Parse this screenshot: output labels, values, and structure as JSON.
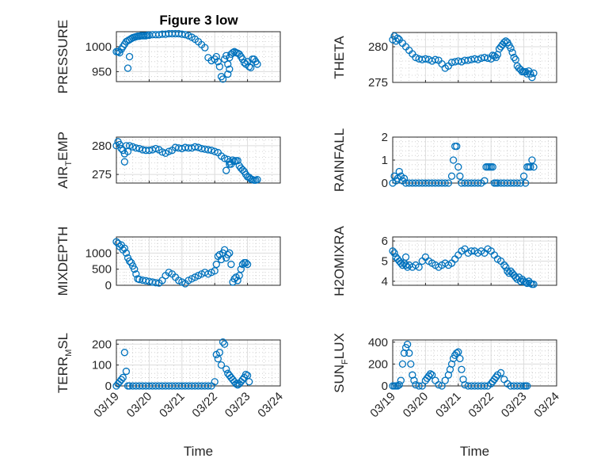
{
  "figure": {
    "title": "Figure 3 low",
    "marker_color": "#0072BD",
    "grid": true,
    "minor_grid": true
  },
  "time_ticks": [
    "03/19",
    "03/20",
    "03/21",
    "03/22",
    "03/23",
    "03/24"
  ],
  "chart_data": [
    {
      "id": "pressure",
      "type": "scatter",
      "title": "Figure 3 low",
      "ylabel": "PRESSURE",
      "ylabel_sub": "",
      "ylabel_tail": "",
      "ylim": [
        930,
        1030
      ],
      "yticks": [
        950,
        1000
      ],
      "xlim": [
        0,
        5
      ],
      "show_xticks": false,
      "x": [
        0,
        0.05,
        0.1,
        0.15,
        0.2,
        0.25,
        0.3,
        0.35,
        0.4,
        0.45,
        0.5,
        0.55,
        0.6,
        0.65,
        0.7,
        0.75,
        0.8,
        0.85,
        0.9,
        0.95,
        1,
        1.1,
        1.2,
        1.3,
        1.4,
        1.5,
        1.6,
        1.7,
        1.8,
        1.9,
        2,
        2.1,
        2.2,
        2.3,
        2.4,
        2.5,
        2.6,
        2.7,
        2.8,
        2.9,
        3,
        3.05,
        3.1,
        3.15,
        3.2,
        3.25,
        3.3,
        3.35,
        3.4,
        3.45,
        3.5,
        3.55,
        3.6,
        3.65,
        3.7,
        3.75,
        3.8,
        3.85,
        3.9,
        3.95,
        4.0,
        4.05,
        4.1,
        4.15,
        4.2,
        4.25,
        4.3,
        0.35,
        0.4,
        3.4,
        3.45
      ],
      "y": [
        990,
        990,
        988,
        995,
        1000,
        1005,
        1010,
        1012,
        1014,
        1016,
        1018,
        1019,
        1020,
        1021,
        1021,
        1022,
        1022,
        1022,
        1022,
        1023,
        1023,
        1024,
        1024,
        1024,
        1025,
        1025,
        1026,
        1026,
        1026,
        1026,
        1025,
        1024,
        1022,
        1019,
        1015,
        1010,
        1004,
        998,
        978,
        972,
        975,
        980,
        970,
        960,
        940,
        935,
        975,
        982,
        965,
        978,
        985,
        988,
        990,
        988,
        987,
        985,
        980,
        975,
        968,
        965,
        970,
        960,
        958,
        975,
        975,
        970,
        965,
        957,
        980,
        945,
        955
      ]
    },
    {
      "id": "theta",
      "type": "scatter",
      "ylabel": "THETA",
      "ylabel_sub": "",
      "ylabel_tail": "",
      "ylim": [
        275,
        282
      ],
      "yticks": [
        275,
        280
      ],
      "xlim": [
        0,
        5
      ],
      "show_xticks": false,
      "x": [
        0,
        0.05,
        0.1,
        0.15,
        0.2,
        0.3,
        0.4,
        0.5,
        0.6,
        0.7,
        0.8,
        0.9,
        1,
        1.1,
        1.2,
        1.3,
        1.4,
        1.5,
        1.6,
        1.7,
        1.8,
        1.9,
        2,
        2.1,
        2.2,
        2.3,
        2.4,
        2.5,
        2.6,
        2.7,
        2.8,
        2.9,
        3,
        3.05,
        3.1,
        3.15,
        3.2,
        3.25,
        3.3,
        3.35,
        3.4,
        3.45,
        3.5,
        3.55,
        3.6,
        3.65,
        3.7,
        3.75,
        3.8,
        3.85,
        3.9,
        3.95,
        4.0,
        4.05,
        4.1,
        4.15,
        4.2,
        4.25,
        4.3
      ],
      "y": [
        281,
        281.5,
        280.8,
        281.2,
        281,
        280.5,
        280,
        279.5,
        279,
        278.5,
        278.3,
        278.2,
        278.3,
        278.2,
        278,
        278.2,
        278.1,
        277.6,
        277,
        277.3,
        277.8,
        277.9,
        278,
        277.9,
        278.1,
        278.1,
        278.2,
        278.3,
        278.2,
        278.4,
        278.5,
        278.4,
        278.3,
        278.8,
        278.7,
        278.5,
        278.9,
        279.7,
        280,
        280.3,
        280.6,
        280.8,
        280.6,
        280.2,
        279.8,
        279.2,
        278.5,
        278.2,
        277.3,
        277,
        276.8,
        276.5,
        276.5,
        276.5,
        276.2,
        276.6,
        276.2,
        275.7,
        276.3
      ]
    },
    {
      "id": "air_temp",
      "type": "scatter",
      "ylabel": "AIR",
      "ylabel_sub": "T",
      "ylabel_tail": "EMP",
      "ylim": [
        273.5,
        281.5
      ],
      "yticks": [
        275,
        280
      ],
      "xlim": [
        0,
        5
      ],
      "show_xticks": false,
      "x": [
        0,
        0.05,
        0.1,
        0.15,
        0.2,
        0.25,
        0.3,
        0.4,
        0.5,
        0.6,
        0.7,
        0.8,
        0.9,
        1,
        1.1,
        1.2,
        1.3,
        1.4,
        1.5,
        1.6,
        1.7,
        1.8,
        1.9,
        2,
        2.1,
        2.2,
        2.3,
        2.4,
        2.5,
        2.6,
        2.7,
        2.8,
        2.9,
        3,
        3.1,
        3.2,
        3.3,
        3.4,
        3.45,
        3.5,
        3.55,
        3.6,
        3.65,
        3.7,
        3.75,
        3.8,
        3.85,
        3.9,
        3.95,
        4.0,
        4.05,
        4.1,
        4.15,
        4.2,
        4.25,
        4.3,
        0.25,
        0.35,
        3.35,
        3.45
      ],
      "y": [
        280,
        280.7,
        280.2,
        279.5,
        279.2,
        278.6,
        280,
        280,
        279.8,
        279.6,
        279.5,
        279.3,
        279.2,
        279.2,
        279.3,
        279.5,
        279.3,
        278.9,
        278.7,
        279,
        279.2,
        279.7,
        279.6,
        279.5,
        279.7,
        279.6,
        279.6,
        279.8,
        279.7,
        279.5,
        279.4,
        279.3,
        279.2,
        279,
        278.8,
        278.2,
        277.8,
        277.6,
        277.2,
        276.8,
        277.5,
        277.3,
        277.4,
        277.4,
        276.5,
        276.1,
        275.8,
        275.5,
        275,
        274.6,
        274.5,
        274.2,
        274.1,
        274,
        274,
        274.1,
        277.2,
        279,
        275.7,
        276.8
      ]
    },
    {
      "id": "rainfall",
      "type": "scatter",
      "ylabel": "RAINFALL",
      "ylabel_sub": "",
      "ylabel_tail": "",
      "ylim": [
        0,
        2
      ],
      "yticks": [
        0,
        1,
        2
      ],
      "xlim": [
        0,
        5
      ],
      "show_xticks": false,
      "x": [
        0,
        0.05,
        0.1,
        0.15,
        0.2,
        0.25,
        0.3,
        0.35,
        0.4,
        0.5,
        0.6,
        0.7,
        0.8,
        0.9,
        1,
        1.1,
        1.2,
        1.3,
        1.4,
        1.5,
        1.6,
        1.7,
        1.8,
        1.85,
        1.9,
        1.95,
        2,
        2.05,
        2.1,
        2.2,
        2.3,
        2.4,
        2.5,
        2.6,
        2.7,
        2.8,
        2.85,
        2.9,
        2.95,
        3,
        3.05,
        3.1,
        3.15,
        3.2,
        3.3,
        3.4,
        3.5,
        3.6,
        3.7,
        3.8,
        3.9,
        4.0,
        4.05,
        4.1,
        4.15,
        4.2,
        4.25,
        4.3
      ],
      "y": [
        0,
        0.3,
        0.1,
        0.2,
        0.5,
        0.3,
        0.1,
        0.2,
        0,
        0,
        0,
        0,
        0,
        0,
        0,
        0,
        0,
        0,
        0,
        0,
        0,
        0,
        0.3,
        1.0,
        1.6,
        1.6,
        0.7,
        0.3,
        0,
        0,
        0,
        0,
        0,
        0,
        0,
        0.1,
        0.7,
        0.7,
        0.7,
        0.7,
        0.7,
        0,
        0,
        0,
        0,
        0,
        0,
        0,
        0,
        0,
        0,
        0.3,
        0,
        0.7,
        0.7,
        0.7,
        1.0,
        0.7
      ]
    },
    {
      "id": "mixdepth",
      "type": "scatter",
      "ylabel": "MIXDEPTH",
      "ylabel_sub": "",
      "ylabel_tail": "",
      "ylim": [
        0,
        1500
      ],
      "yticks": [
        0,
        500,
        1000
      ],
      "xlim": [
        0,
        5
      ],
      "show_xticks": false,
      "x": [
        0,
        0.05,
        0.1,
        0.15,
        0.2,
        0.25,
        0.3,
        0.35,
        0.4,
        0.45,
        0.5,
        0.55,
        0.6,
        0.65,
        0.7,
        0.8,
        0.9,
        1,
        1.1,
        1.2,
        1.3,
        1.4,
        1.5,
        1.6,
        1.7,
        1.8,
        1.9,
        2,
        2.1,
        2.2,
        2.3,
        2.4,
        2.5,
        2.6,
        2.7,
        2.8,
        2.9,
        3,
        3.05,
        3.1,
        3.15,
        3.2,
        3.25,
        3.3,
        3.35,
        3.4,
        3.45,
        3.5,
        3.55,
        3.6,
        3.65,
        3.7,
        3.75,
        3.8,
        3.85,
        3.9,
        3.95,
        4.0
      ],
      "y": [
        1350,
        1300,
        1200,
        1250,
        1100,
        1150,
        1000,
        850,
        750,
        700,
        600,
        500,
        350,
        200,
        180,
        160,
        140,
        120,
        100,
        80,
        70,
        150,
        300,
        400,
        350,
        250,
        150,
        100,
        50,
        150,
        200,
        250,
        300,
        350,
        400,
        350,
        400,
        450,
        650,
        900,
        950,
        800,
        1000,
        1100,
        850,
        950,
        1000,
        650,
        100,
        200,
        250,
        150,
        300,
        500,
        650,
        700,
        700,
        650
      ]
    },
    {
      "id": "h2omixra",
      "type": "scatter",
      "ylabel": "H2OMIXRA",
      "ylabel_sub": "",
      "ylabel_tail": "",
      "ylim": [
        3.8,
        6.2
      ],
      "yticks": [
        4,
        5,
        6
      ],
      "xlim": [
        0,
        5
      ],
      "show_xticks": false,
      "x": [
        0,
        0.05,
        0.1,
        0.15,
        0.2,
        0.25,
        0.3,
        0.35,
        0.4,
        0.45,
        0.5,
        0.6,
        0.7,
        0.8,
        0.9,
        1,
        1.1,
        1.2,
        1.3,
        1.4,
        1.5,
        1.6,
        1.7,
        1.8,
        1.9,
        2,
        2.1,
        2.2,
        2.3,
        2.4,
        2.5,
        2.6,
        2.7,
        2.8,
        2.9,
        3,
        3.1,
        3.2,
        3.3,
        3.4,
        3.45,
        3.5,
        3.55,
        3.6,
        3.65,
        3.7,
        3.75,
        3.8,
        3.85,
        3.9,
        3.95,
        4.0,
        4.05,
        4.1,
        4.15,
        4.2,
        4.25,
        4.3,
        0.4
      ],
      "y": [
        5.5,
        5.4,
        5.2,
        5.1,
        5,
        4.9,
        4.8,
        4.9,
        4.8,
        4.7,
        4.8,
        4.7,
        4.8,
        4.7,
        5,
        5.2,
        5,
        4.9,
        4.8,
        4.7,
        4.8,
        4.9,
        4.8,
        4.9,
        5.1,
        5.3,
        5.5,
        5.6,
        5.4,
        5.5,
        5.5,
        5.4,
        5.5,
        5.4,
        5.6,
        5.5,
        5.3,
        5.1,
        5,
        4.8,
        4.7,
        4.5,
        4.4,
        4.5,
        4.4,
        4.3,
        4.2,
        4.1,
        4.2,
        4,
        4.1,
        4,
        3.95,
        3.9,
        4,
        3.9,
        3.85,
        3.85,
        5.2
      ]
    },
    {
      "id": "terr_msl",
      "type": "scatter",
      "ylabel": "TERR",
      "ylabel_sub": "M",
      "ylabel_tail": "SL",
      "ylim": [
        0,
        220
      ],
      "yticks": [
        0,
        100,
        200
      ],
      "xlim": [
        0,
        5
      ],
      "show_xticks": true,
      "xlabel": "Time",
      "x": [
        0,
        0.05,
        0.1,
        0.15,
        0.2,
        0.25,
        0.3,
        0.35,
        0.4,
        0.5,
        0.6,
        0.7,
        0.8,
        0.9,
        1,
        1.1,
        1.2,
        1.3,
        1.4,
        1.5,
        1.6,
        1.7,
        1.8,
        1.9,
        2,
        2.1,
        2.2,
        2.3,
        2.4,
        2.5,
        2.6,
        2.7,
        2.8,
        2.9,
        3,
        3.05,
        3.1,
        3.15,
        3.2,
        3.25,
        3.3,
        3.35,
        3.4,
        3.45,
        3.5,
        3.55,
        3.6,
        3.65,
        3.7,
        3.75,
        3.8,
        3.85,
        3.9,
        3.95,
        4.0,
        4.05
      ],
      "y": [
        0,
        10,
        20,
        30,
        40,
        160,
        70,
        0,
        0,
        0,
        0,
        0,
        0,
        0,
        0,
        0,
        0,
        0,
        0,
        0,
        0,
        0,
        0,
        0,
        0,
        0,
        0,
        0,
        0,
        0,
        0,
        0,
        0,
        0,
        20,
        150,
        130,
        160,
        100,
        210,
        200,
        80,
        60,
        50,
        40,
        30,
        20,
        10,
        5,
        10,
        20,
        30,
        40,
        55,
        50,
        20
      ]
    },
    {
      "id": "sun_flux",
      "type": "scatter",
      "ylabel": "SUN",
      "ylabel_sub": "F",
      "ylabel_tail": "LUX",
      "ylim": [
        0,
        420
      ],
      "yticks": [
        0,
        200,
        400
      ],
      "xlim": [
        0,
        5
      ],
      "show_xticks": true,
      "xlabel": "Time",
      "x": [
        0,
        0.05,
        0.1,
        0.15,
        0.2,
        0.25,
        0.3,
        0.35,
        0.4,
        0.45,
        0.5,
        0.55,
        0.6,
        0.65,
        0.7,
        0.8,
        0.9,
        1,
        1.05,
        1.1,
        1.15,
        1.2,
        1.3,
        1.4,
        1.5,
        1.6,
        1.7,
        1.75,
        1.8,
        1.85,
        1.9,
        1.95,
        2,
        2.05,
        2.1,
        2.15,
        2.2,
        2.3,
        2.4,
        2.5,
        2.6,
        2.7,
        2.8,
        2.9,
        3,
        3.05,
        3.1,
        3.15,
        3.2,
        3.3,
        3.4,
        3.5,
        3.6,
        3.7,
        3.8,
        3.9,
        4.0,
        4.05,
        4.1
      ],
      "y": [
        0,
        0,
        0,
        0,
        10,
        50,
        200,
        300,
        350,
        380,
        300,
        200,
        100,
        50,
        10,
        0,
        0,
        50,
        70,
        90,
        110,
        100,
        50,
        10,
        0,
        50,
        100,
        150,
        200,
        250,
        280,
        300,
        310,
        250,
        150,
        60,
        10,
        0,
        0,
        0,
        0,
        0,
        0,
        0,
        20,
        40,
        60,
        80,
        100,
        120,
        60,
        20,
        0,
        0,
        0,
        0,
        0,
        0,
        0
      ]
    }
  ]
}
